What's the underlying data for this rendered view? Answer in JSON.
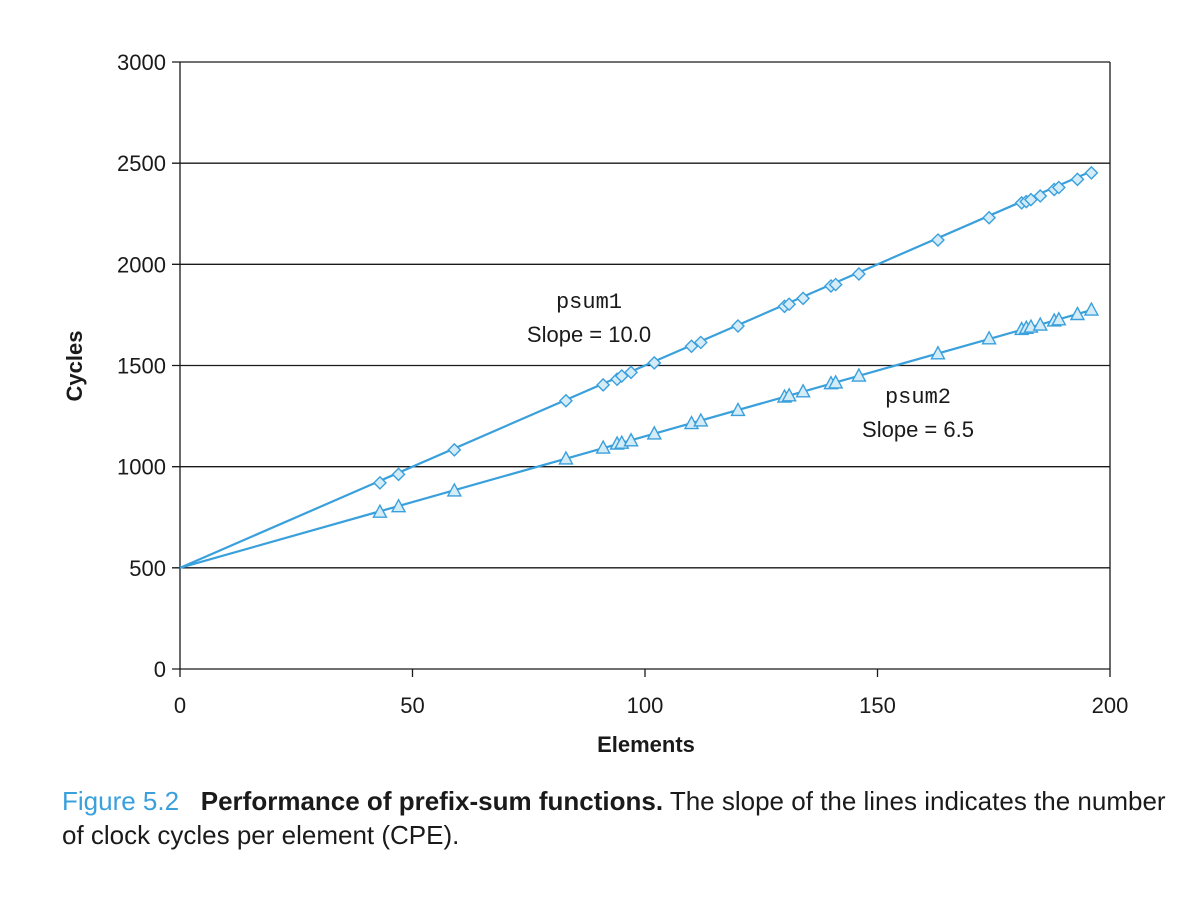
{
  "chart_data": {
    "type": "line",
    "xlabel": "Elements",
    "ylabel": "Cycles",
    "xlim": [
      0,
      200
    ],
    "ylim": [
      0,
      3000
    ],
    "xticks": [
      0,
      50,
      100,
      150,
      200
    ],
    "yticks": [
      0,
      500,
      1000,
      1500,
      2000,
      2500,
      3000
    ],
    "grid": "horizontal",
    "color": "#3aa0dc",
    "series": [
      {
        "name": "psum1",
        "annotation": "Slope = 10.0",
        "marker": "diamond",
        "line": {
          "intercept": 500,
          "slope": 10.0
        },
        "points": [
          [
            43,
            920
          ],
          [
            47,
            962
          ],
          [
            59,
            1083
          ],
          [
            83,
            1326
          ],
          [
            91,
            1404
          ],
          [
            94,
            1432
          ],
          [
            95,
            1448
          ],
          [
            97,
            1466
          ],
          [
            102,
            1513
          ],
          [
            110,
            1595
          ],
          [
            112,
            1614
          ],
          [
            120,
            1695
          ],
          [
            130,
            1792
          ],
          [
            131,
            1803
          ],
          [
            134,
            1832
          ],
          [
            140,
            1893
          ],
          [
            141,
            1900
          ],
          [
            146,
            1952
          ],
          [
            163,
            2120
          ],
          [
            174,
            2230
          ],
          [
            181,
            2304
          ],
          [
            182,
            2310
          ],
          [
            183,
            2320
          ],
          [
            185,
            2338
          ],
          [
            188,
            2370
          ],
          [
            189,
            2380
          ],
          [
            193,
            2420
          ],
          [
            196,
            2452
          ]
        ]
      },
      {
        "name": "psum2",
        "annotation": "Slope = 6.5",
        "marker": "triangle",
        "line": {
          "intercept": 500,
          "slope": 6.5
        },
        "points": [
          [
            43,
            775
          ],
          [
            47,
            802
          ],
          [
            59,
            880
          ],
          [
            83,
            1038
          ],
          [
            91,
            1092
          ],
          [
            94,
            1112
          ],
          [
            95,
            1116
          ],
          [
            97,
            1128
          ],
          [
            102,
            1162
          ],
          [
            110,
            1213
          ],
          [
            112,
            1226
          ],
          [
            120,
            1278
          ],
          [
            130,
            1344
          ],
          [
            131,
            1350
          ],
          [
            134,
            1370
          ],
          [
            140,
            1410
          ],
          [
            141,
            1414
          ],
          [
            146,
            1448
          ],
          [
            163,
            1558
          ],
          [
            174,
            1632
          ],
          [
            181,
            1678
          ],
          [
            182,
            1684
          ],
          [
            183,
            1690
          ],
          [
            185,
            1700
          ],
          [
            188,
            1720
          ],
          [
            189,
            1726
          ],
          [
            193,
            1752
          ],
          [
            196,
            1774
          ]
        ]
      }
    ]
  },
  "caption": {
    "number": "Figure 5.2",
    "title": "Performance of prefix-sum functions.",
    "text": "The slope of the lines indicates the number of clock cycles per element (CPE)."
  }
}
